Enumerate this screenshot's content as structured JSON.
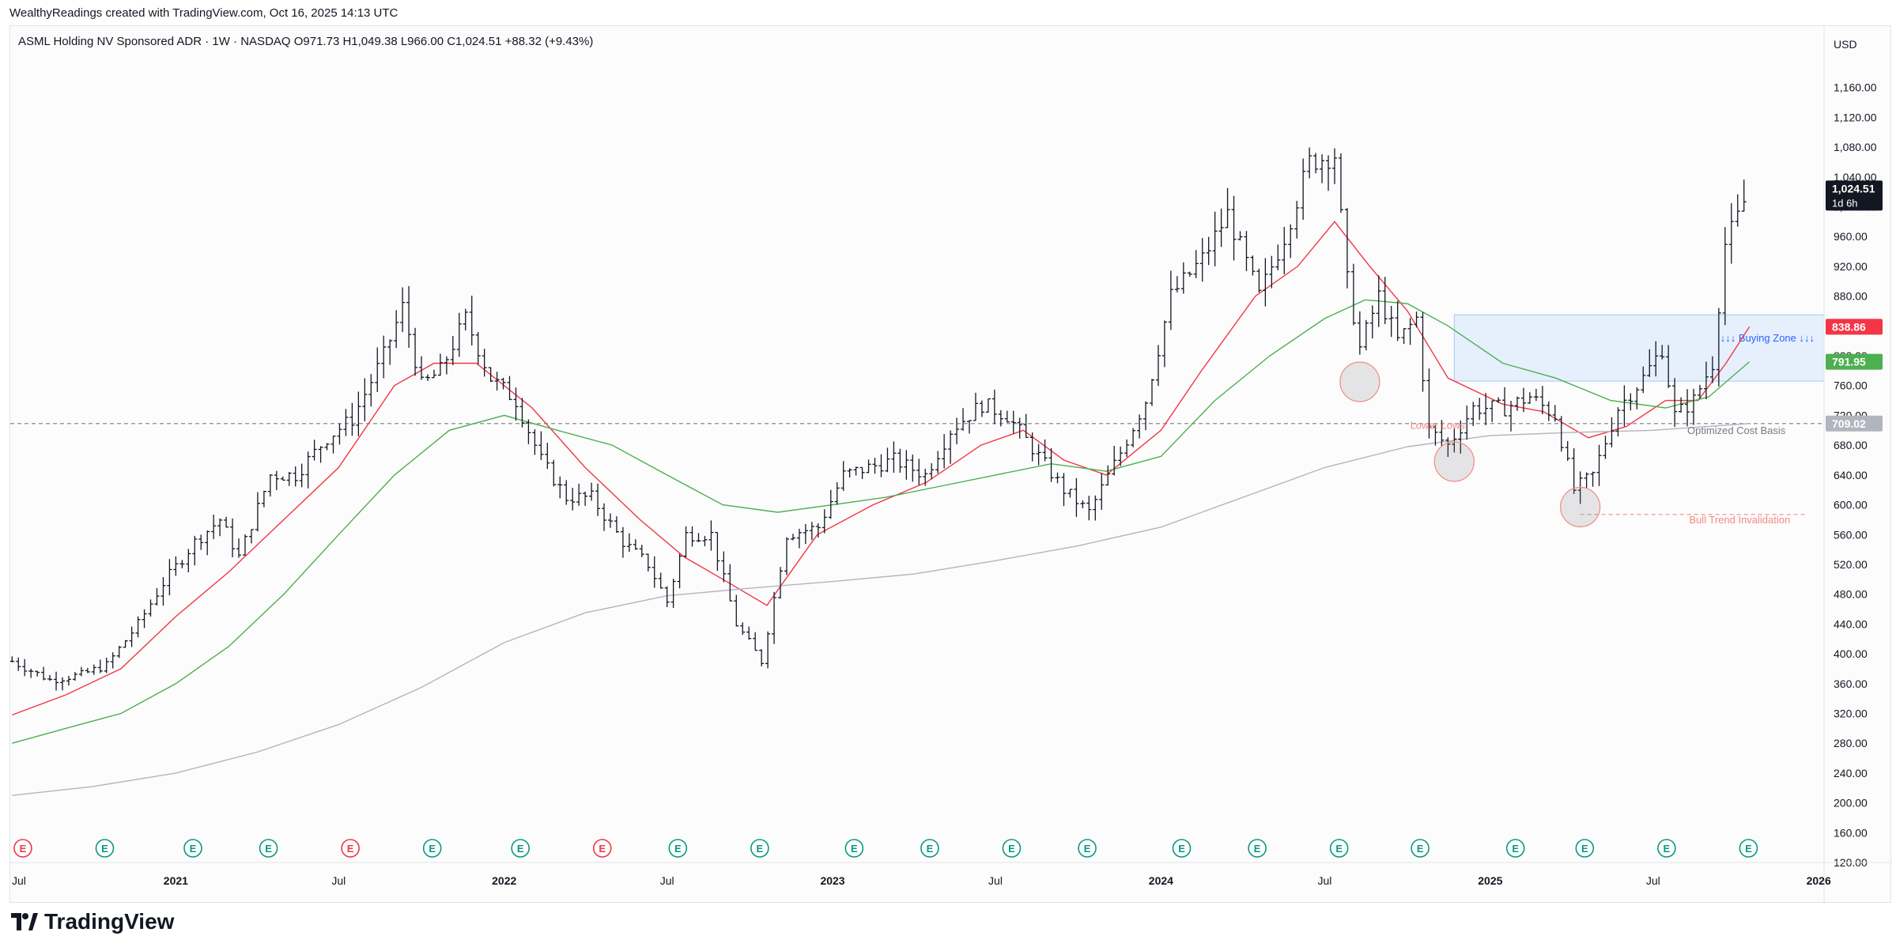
{
  "caption": "WealthyReadings created with TradingView.com, Oct 16, 2025 14:13 UTC",
  "legend": "ASML Holding NV Sponsored ADR · 1W · NASDAQ  O971.73  H1,049.38  L966.00  C1,024.51  +88.32 (+9.43%)",
  "currency": "USD",
  "brand": "TradingView",
  "colors": {
    "candle": "#131722",
    "ema_fast": "#f23645",
    "ema_slow": "#4caf50",
    "sma_long": "#b2b5be",
    "zone_fill": "#e3effd",
    "zone_stroke": "#9cc3f5",
    "zone_text": "#2962ff",
    "note_red": "#f28b82",
    "earnings_green": "#089981",
    "earnings_red": "#f23645"
  },
  "chart_data": {
    "type": "bar",
    "subtype": "ohlc",
    "ylim": [
      120,
      1200
    ],
    "y_ticks": [
      120,
      160,
      200,
      240,
      280,
      320,
      360,
      400,
      440,
      480,
      520,
      560,
      600,
      640,
      680,
      720,
      760,
      800,
      840,
      880,
      920,
      960,
      1000,
      1040,
      1080,
      1120,
      1160
    ],
    "y_tick_labels": [
      "120.00",
      "160.00",
      "200.00",
      "240.00",
      "280.00",
      "320.00",
      "360.00",
      "400.00",
      "440.00",
      "480.00",
      "520.00",
      "560.00",
      "600.00",
      "640.00",
      "680.00",
      "720.00",
      "760.00",
      "800.00",
      "840.00",
      "880.00",
      "920.00",
      "960.00",
      "1,000.00",
      "1,040.00",
      "1,080.00",
      "1,120.00",
      "1,160.00"
    ],
    "x_range": [
      "2020-07-01",
      "2026-01-07"
    ],
    "x_ticks": [
      {
        "label": "Jul",
        "date": "2020-07-01",
        "bold": false
      },
      {
        "label": "2021",
        "date": "2021-01-01",
        "bold": true
      },
      {
        "label": "Jul",
        "date": "2021-07-01",
        "bold": false
      },
      {
        "label": "2022",
        "date": "2022-01-01",
        "bold": true
      },
      {
        "label": "Jul",
        "date": "2022-07-01",
        "bold": false
      },
      {
        "label": "2023",
        "date": "2023-01-01",
        "bold": true
      },
      {
        "label": "Jul",
        "date": "2023-07-01",
        "bold": false
      },
      {
        "label": "2024",
        "date": "2024-01-01",
        "bold": true
      },
      {
        "label": "Jul",
        "date": "2024-07-01",
        "bold": false
      },
      {
        "label": "2025",
        "date": "2025-01-01",
        "bold": true
      },
      {
        "label": "Jul",
        "date": "2025-07-01",
        "bold": false
      },
      {
        "label": "2026",
        "date": "2026-01-01",
        "bold": true
      }
    ],
    "price_path": [
      [
        "2020-07-03",
        390
      ],
      [
        "2020-08-14",
        365
      ],
      [
        "2020-09-18",
        372
      ],
      [
        "2020-10-16",
        385
      ],
      [
        "2020-11-20",
        440
      ],
      [
        "2020-12-18",
        495
      ],
      [
        "2021-01-22",
        550
      ],
      [
        "2021-02-19",
        580
      ],
      [
        "2021-03-12",
        530
      ],
      [
        "2021-04-16",
        640
      ],
      [
        "2021-05-14",
        640
      ],
      [
        "2021-06-18",
        690
      ],
      [
        "2021-07-16",
        715
      ],
      [
        "2021-08-20",
        800
      ],
      [
        "2021-09-10",
        865
      ],
      [
        "2021-10-01",
        760
      ],
      [
        "2021-10-22",
        780
      ],
      [
        "2021-11-19",
        850
      ],
      [
        "2021-12-17",
        770
      ],
      [
        "2022-01-14",
        740
      ],
      [
        "2022-02-11",
        660
      ],
      [
        "2022-03-11",
        610
      ],
      [
        "2022-04-08",
        610
      ],
      [
        "2022-05-13",
        550
      ],
      [
        "2022-06-10",
        520
      ],
      [
        "2022-07-01",
        470
      ],
      [
        "2022-07-22",
        560
      ],
      [
        "2022-08-19",
        560
      ],
      [
        "2022-09-16",
        440
      ],
      [
        "2022-10-14",
        390
      ],
      [
        "2022-11-11",
        560
      ],
      [
        "2022-12-16",
        570
      ],
      [
        "2023-01-13",
        640
      ],
      [
        "2023-02-10",
        650
      ],
      [
        "2023-03-10",
        660
      ],
      [
        "2023-04-14",
        640
      ],
      [
        "2023-05-12",
        700
      ],
      [
        "2023-06-16",
        735
      ],
      [
        "2023-07-14",
        720
      ],
      [
        "2023-08-18",
        665
      ],
      [
        "2023-09-15",
        620
      ],
      [
        "2023-10-13",
        590
      ],
      [
        "2023-11-17",
        670
      ],
      [
        "2023-12-15",
        740
      ],
      [
        "2024-01-12",
        880
      ],
      [
        "2024-02-16",
        930
      ],
      [
        "2024-03-15",
        990
      ],
      [
        "2024-04-19",
        880
      ],
      [
        "2024-05-17",
        960
      ],
      [
        "2024-06-14",
        1060
      ],
      [
        "2024-07-12",
        1070
      ],
      [
        "2024-07-26",
        900
      ],
      [
        "2024-08-09",
        810
      ],
      [
        "2024-08-30",
        880
      ],
      [
        "2024-09-20",
        820
      ],
      [
        "2024-10-11",
        850
      ],
      [
        "2024-10-25",
        700
      ],
      [
        "2024-11-15",
        680
      ],
      [
        "2024-12-13",
        730
      ],
      [
        "2025-01-17",
        730
      ],
      [
        "2025-02-14",
        745
      ],
      [
        "2025-03-14",
        720
      ],
      [
        "2025-04-04",
        620
      ],
      [
        "2025-04-25",
        640
      ],
      [
        "2025-05-23",
        730
      ],
      [
        "2025-06-20",
        770
      ],
      [
        "2025-07-11",
        810
      ],
      [
        "2025-07-25",
        720
      ],
      [
        "2025-08-15",
        740
      ],
      [
        "2025-09-05",
        790
      ],
      [
        "2025-09-19",
        950
      ],
      [
        "2025-10-03",
        985
      ],
      [
        "2025-10-16",
        1024.51
      ]
    ],
    "series": [
      {
        "name": "",
        "color": "#f23645",
        "points": [
          [
            "2020-07-03",
            318
          ],
          [
            "2020-09-01",
            345
          ],
          [
            "2020-11-01",
            380
          ],
          [
            "2021-01-01",
            450
          ],
          [
            "2021-03-01",
            510
          ],
          [
            "2021-05-01",
            580
          ],
          [
            "2021-07-01",
            650
          ],
          [
            "2021-09-01",
            760
          ],
          [
            "2021-10-15",
            790
          ],
          [
            "2021-12-01",
            790
          ],
          [
            "2022-02-01",
            730
          ],
          [
            "2022-04-01",
            650
          ],
          [
            "2022-06-01",
            580
          ],
          [
            "2022-07-20",
            530
          ],
          [
            "2022-09-01",
            500
          ],
          [
            "2022-10-20",
            465
          ],
          [
            "2022-12-15",
            560
          ],
          [
            "2023-02-15",
            600
          ],
          [
            "2023-04-15",
            630
          ],
          [
            "2023-06-15",
            680
          ],
          [
            "2023-08-01",
            700
          ],
          [
            "2023-09-15",
            660
          ],
          [
            "2023-11-01",
            640
          ],
          [
            "2024-01-01",
            700
          ],
          [
            "2024-02-15",
            780
          ],
          [
            "2024-04-15",
            880
          ],
          [
            "2024-06-01",
            920
          ],
          [
            "2024-07-12",
            980
          ],
          [
            "2024-08-20",
            920
          ],
          [
            "2024-10-01",
            860
          ],
          [
            "2024-11-15",
            770
          ],
          [
            "2025-01-15",
            735
          ],
          [
            "2025-03-01",
            725
          ],
          [
            "2025-04-20",
            690
          ],
          [
            "2025-06-01",
            705
          ],
          [
            "2025-07-15",
            740
          ],
          [
            "2025-08-20",
            740
          ],
          [
            "2025-09-20",
            790
          ],
          [
            "2025-10-16",
            838.86
          ]
        ]
      },
      {
        "name": "",
        "color": "#4caf50",
        "points": [
          [
            "2020-07-03",
            280
          ],
          [
            "2020-09-01",
            300
          ],
          [
            "2020-11-01",
            320
          ],
          [
            "2021-01-01",
            360
          ],
          [
            "2021-03-01",
            410
          ],
          [
            "2021-05-01",
            480
          ],
          [
            "2021-07-01",
            560
          ],
          [
            "2021-09-01",
            640
          ],
          [
            "2021-11-01",
            700
          ],
          [
            "2022-01-01",
            720
          ],
          [
            "2022-03-01",
            700
          ],
          [
            "2022-05-01",
            680
          ],
          [
            "2022-07-01",
            640
          ],
          [
            "2022-09-01",
            600
          ],
          [
            "2022-11-01",
            590
          ],
          [
            "2023-01-01",
            600
          ],
          [
            "2023-03-01",
            610
          ],
          [
            "2023-05-01",
            625
          ],
          [
            "2023-07-01",
            640
          ],
          [
            "2023-09-01",
            655
          ],
          [
            "2023-11-01",
            645
          ],
          [
            "2024-01-01",
            665
          ],
          [
            "2024-03-01",
            740
          ],
          [
            "2024-05-01",
            800
          ],
          [
            "2024-07-01",
            850
          ],
          [
            "2024-08-15",
            875
          ],
          [
            "2024-10-01",
            870
          ],
          [
            "2024-11-15",
            840
          ],
          [
            "2025-01-15",
            790
          ],
          [
            "2025-03-15",
            770
          ],
          [
            "2025-05-15",
            740
          ],
          [
            "2025-07-15",
            730
          ],
          [
            "2025-09-01",
            745
          ],
          [
            "2025-10-16",
            791.95
          ]
        ]
      },
      {
        "name": "",
        "color": "#b2b5be",
        "points": [
          [
            "2020-07-03",
            210
          ],
          [
            "2020-10-01",
            222
          ],
          [
            "2021-01-01",
            240
          ],
          [
            "2021-04-01",
            268
          ],
          [
            "2021-07-01",
            305
          ],
          [
            "2021-10-01",
            355
          ],
          [
            "2022-01-01",
            415
          ],
          [
            "2022-04-01",
            455
          ],
          [
            "2022-07-01",
            478
          ],
          [
            "2022-10-01",
            488
          ],
          [
            "2023-01-01",
            497
          ],
          [
            "2023-04-01",
            507
          ],
          [
            "2023-07-01",
            525
          ],
          [
            "2023-10-01",
            545
          ],
          [
            "2024-01-01",
            570
          ],
          [
            "2024-04-01",
            610
          ],
          [
            "2024-07-01",
            650
          ],
          [
            "2024-10-01",
            678
          ],
          [
            "2025-01-01",
            693
          ],
          [
            "2025-04-01",
            697
          ],
          [
            "2025-07-01",
            700
          ],
          [
            "2025-10-16",
            709.02
          ]
        ]
      }
    ],
    "price_labels": [
      {
        "value": 1024.51,
        "text": "1,024.51",
        "sub": "1d 6h",
        "bg": "#131722"
      },
      {
        "value": 838.86,
        "text": "838.86",
        "bg": "#f23645"
      },
      {
        "value": 791.95,
        "text": "791.95",
        "bg": "#4caf50"
      },
      {
        "value": 709.02,
        "text": "709.02",
        "bg": "#b2b5be"
      }
    ],
    "horizontal_lines": [
      {
        "value": 709.02,
        "style": "dashed",
        "color": "#787b86",
        "from": "2020-07-01",
        "to": "2026-01-07"
      },
      {
        "value": 587,
        "style": "dashed",
        "color": "#f28b82",
        "from": "2025-04-11",
        "to": "2025-12-20"
      }
    ],
    "zones": [
      {
        "label": "↓↓↓ Buying Zone ↓↓↓",
        "y0": 766,
        "y1": 855,
        "x0": "2024-11-22",
        "x1": "2026-01-07"
      }
    ],
    "annotations": [
      {
        "text": "Lower Lows",
        "date": "2024-10-04",
        "value": 702,
        "color": "#f28b82"
      },
      {
        "text": "Optimized Cost Basis",
        "date": "2025-08-08",
        "value": 695,
        "color": "#787b86"
      },
      {
        "text": "Bull Trend Invalidation",
        "date": "2025-08-10",
        "value": 575,
        "color": "#f28b82"
      }
    ],
    "circles": [
      {
        "date": "2024-08-09",
        "value": 765
      },
      {
        "date": "2024-11-22",
        "value": 658
      },
      {
        "date": "2025-04-11",
        "value": 597
      }
    ],
    "earnings": [
      {
        "date": "2020-07-15",
        "color": "red"
      },
      {
        "date": "2020-10-14",
        "color": "green"
      },
      {
        "date": "2021-01-20",
        "color": "green"
      },
      {
        "date": "2021-04-14",
        "color": "green"
      },
      {
        "date": "2021-07-14",
        "color": "red"
      },
      {
        "date": "2021-10-13",
        "color": "green"
      },
      {
        "date": "2022-01-19",
        "color": "green"
      },
      {
        "date": "2022-04-20",
        "color": "red"
      },
      {
        "date": "2022-07-13",
        "color": "green"
      },
      {
        "date": "2022-10-12",
        "color": "green"
      },
      {
        "date": "2023-01-25",
        "color": "green"
      },
      {
        "date": "2023-04-19",
        "color": "green"
      },
      {
        "date": "2023-07-19",
        "color": "green"
      },
      {
        "date": "2023-10-11",
        "color": "green"
      },
      {
        "date": "2024-01-24",
        "color": "green"
      },
      {
        "date": "2024-04-17",
        "color": "green"
      },
      {
        "date": "2024-07-17",
        "color": "green"
      },
      {
        "date": "2024-10-15",
        "color": "green"
      },
      {
        "date": "2025-01-29",
        "color": "green"
      },
      {
        "date": "2025-04-16",
        "color": "green"
      },
      {
        "date": "2025-07-16",
        "color": "green"
      },
      {
        "date": "2025-10-15",
        "color": "green"
      }
    ]
  }
}
